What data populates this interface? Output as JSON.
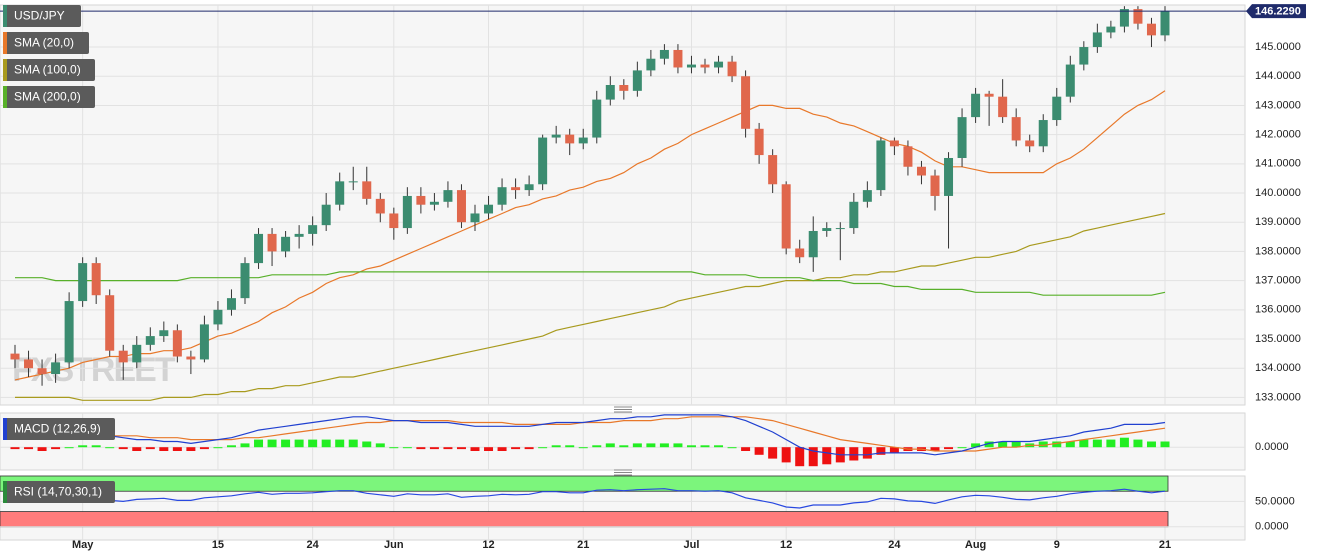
{
  "chart_data": [
    {
      "type": "candlestick",
      "title": "USD/JPY",
      "watermark": "FXSTREET",
      "last_price_label": "146.2290",
      "categories": [
        null,
        null,
        null,
        null,
        null,
        "May",
        null,
        null,
        null,
        null,
        null,
        null,
        null,
        null,
        null,
        "15",
        null,
        null,
        null,
        null,
        null,
        null,
        "24",
        null,
        null,
        null,
        null,
        null,
        "Jun",
        null,
        null,
        null,
        null,
        null,
        null,
        "12",
        null,
        null,
        null,
        null,
        null,
        null,
        "21",
        null,
        null,
        null,
        null,
        null,
        null,
        null,
        "Jul",
        null,
        null,
        null,
        null,
        null,
        null,
        "12",
        null,
        null,
        null,
        null,
        null,
        null,
        null,
        "24",
        null,
        null,
        null,
        null,
        null,
        "Aug",
        null,
        null,
        null,
        null,
        null,
        "9",
        null,
        null,
        null,
        null,
        null,
        null,
        null,
        "21"
      ],
      "open": [
        134.5,
        134.3,
        134.0,
        133.8,
        134.2,
        136.3,
        137.6,
        136.5,
        134.6,
        134.2,
        134.8,
        135.1,
        135.3,
        134.4,
        134.3,
        135.5,
        136.0,
        136.4,
        137.6,
        138.6,
        138.0,
        138.5,
        138.6,
        138.9,
        139.6,
        140.4,
        140.4,
        139.8,
        139.3,
        138.8,
        139.9,
        139.6,
        139.7,
        140.1,
        139.0,
        139.3,
        139.6,
        140.2,
        140.1,
        140.3,
        141.9,
        142.0,
        141.7,
        141.9,
        143.2,
        143.7,
        143.5,
        144.2,
        144.6,
        144.9,
        144.3,
        144.4,
        144.3,
        144.5,
        144.0,
        142.2,
        141.3,
        140.3,
        138.1,
        137.8,
        138.7,
        138.8,
        138.8,
        139.7,
        140.1,
        141.8,
        141.6,
        140.9,
        140.6,
        139.9,
        141.2,
        142.6,
        143.4,
        143.3,
        142.6,
        141.8,
        141.6,
        142.5,
        143.3,
        144.4,
        145.0,
        145.5,
        145.7,
        146.3,
        145.8,
        145.4
      ],
      "high": [
        134.8,
        134.6,
        134.3,
        134.5,
        136.6,
        137.8,
        137.8,
        136.7,
        134.8,
        135.1,
        135.4,
        135.6,
        135.5,
        134.6,
        135.8,
        136.3,
        136.7,
        137.8,
        138.8,
        138.8,
        138.7,
        138.9,
        139.2,
        140.0,
        140.7,
        140.9,
        140.9,
        140.0,
        139.5,
        140.2,
        140.2,
        140.0,
        140.4,
        140.3,
        139.6,
        139.9,
        140.5,
        140.5,
        140.6,
        142.0,
        142.3,
        142.2,
        142.2,
        143.5,
        144.0,
        143.9,
        144.5,
        144.9,
        145.1,
        145.1,
        144.7,
        144.6,
        144.7,
        144.7,
        144.2,
        142.4,
        141.5,
        140.4,
        138.4,
        139.2,
        139.0,
        139.0,
        140.0,
        140.4,
        141.9,
        141.9,
        141.8,
        141.1,
        140.8,
        141.4,
        142.9,
        143.6,
        143.5,
        143.9,
        142.9,
        142.0,
        142.7,
        143.6,
        144.7,
        145.2,
        145.8,
        145.9,
        146.4,
        146.4,
        146.0,
        146.4
      ],
      "low": [
        134.0,
        133.7,
        133.4,
        133.5,
        134.0,
        136.1,
        136.2,
        134.4,
        133.6,
        134.0,
        134.6,
        134.9,
        134.2,
        133.8,
        134.2,
        135.3,
        135.8,
        136.2,
        137.4,
        137.5,
        137.8,
        138.1,
        138.2,
        138.7,
        139.4,
        140.1,
        139.6,
        139.0,
        138.4,
        138.6,
        139.3,
        139.4,
        139.5,
        138.8,
        138.7,
        139.1,
        139.4,
        139.8,
        139.9,
        140.1,
        141.7,
        141.3,
        141.5,
        141.7,
        143.0,
        143.2,
        143.3,
        144.0,
        144.4,
        144.1,
        144.1,
        144.1,
        144.1,
        143.8,
        141.9,
        141.0,
        140.0,
        137.9,
        137.6,
        137.3,
        138.5,
        137.7,
        138.6,
        139.5,
        139.9,
        141.3,
        140.6,
        140.3,
        139.4,
        138.1,
        140.9,
        142.4,
        142.3,
        142.4,
        141.6,
        141.4,
        141.4,
        142.3,
        143.1,
        144.2,
        144.8,
        145.3,
        145.5,
        145.6,
        145.0,
        145.2
      ],
      "close": [
        134.3,
        134.0,
        133.8,
        134.2,
        136.3,
        137.6,
        136.5,
        134.6,
        134.2,
        134.8,
        135.1,
        135.3,
        134.4,
        134.3,
        135.5,
        136.0,
        136.4,
        137.6,
        138.6,
        138.0,
        138.5,
        138.6,
        138.9,
        139.6,
        140.4,
        140.4,
        139.8,
        139.3,
        138.8,
        139.9,
        139.6,
        139.7,
        140.1,
        139.0,
        139.3,
        139.6,
        140.2,
        140.1,
        140.3,
        141.9,
        142.0,
        141.7,
        141.9,
        143.2,
        143.7,
        143.5,
        144.2,
        144.6,
        144.9,
        144.3,
        144.4,
        144.3,
        144.5,
        144.0,
        142.2,
        141.3,
        140.3,
        138.1,
        137.8,
        138.7,
        138.8,
        138.8,
        139.7,
        140.1,
        141.8,
        141.6,
        140.9,
        140.6,
        139.9,
        141.2,
        142.6,
        143.4,
        143.3,
        142.6,
        141.8,
        141.6,
        142.5,
        143.3,
        144.4,
        145.0,
        145.5,
        145.7,
        146.3,
        145.8,
        145.4,
        146.229
      ],
      "up_color": "#3b8c70",
      "down_color": "#e0674c",
      "title_color": "#3b8c70",
      "last_color": "#1f2b6b",
      "series": [
        {
          "name": "SMA (20,0)",
          "color": "#e8782a",
          "values": [
            133.6,
            133.7,
            133.8,
            133.9,
            134.0,
            134.2,
            134.3,
            134.4,
            134.4,
            134.5,
            134.5,
            134.6,
            134.6,
            134.7,
            134.9,
            135.1,
            135.2,
            135.4,
            135.6,
            135.9,
            136.1,
            136.4,
            136.6,
            136.9,
            137.1,
            137.2,
            137.4,
            137.5,
            137.7,
            137.9,
            138.1,
            138.3,
            138.5,
            138.7,
            138.9,
            139.1,
            139.3,
            139.5,
            139.6,
            139.8,
            139.9,
            140.1,
            140.2,
            140.4,
            140.5,
            140.7,
            141.0,
            141.2,
            141.5,
            141.7,
            142.0,
            142.2,
            142.4,
            142.6,
            142.8,
            143.0,
            143.0,
            142.9,
            142.9,
            142.7,
            142.6,
            142.4,
            142.3,
            142.1,
            141.9,
            141.7,
            141.6,
            141.4,
            141.1,
            140.9,
            140.9,
            140.8,
            140.7,
            140.7,
            140.7,
            140.7,
            140.7,
            141.0,
            141.2,
            141.5,
            141.9,
            142.3,
            142.7,
            143.0,
            143.2,
            143.5
          ]
        },
        {
          "name": "SMA (100,0)",
          "color": "#a89a1e",
          "values": [
            133.0,
            133.0,
            133.0,
            133.0,
            133.0,
            132.9,
            132.9,
            132.9,
            132.9,
            132.9,
            132.9,
            133.0,
            133.0,
            133.0,
            133.1,
            133.1,
            133.2,
            133.2,
            133.3,
            133.3,
            133.4,
            133.4,
            133.5,
            133.6,
            133.7,
            133.7,
            133.8,
            133.9,
            134.0,
            134.1,
            134.2,
            134.3,
            134.4,
            134.5,
            134.6,
            134.7,
            134.8,
            134.9,
            135.0,
            135.1,
            135.3,
            135.4,
            135.5,
            135.6,
            135.7,
            135.8,
            135.9,
            136.0,
            136.1,
            136.3,
            136.4,
            136.5,
            136.6,
            136.7,
            136.8,
            136.8,
            136.9,
            137.0,
            137.0,
            137.0,
            137.1,
            137.1,
            137.2,
            137.2,
            137.3,
            137.3,
            137.4,
            137.5,
            137.5,
            137.6,
            137.7,
            137.8,
            137.8,
            137.9,
            138.0,
            138.2,
            138.3,
            138.4,
            138.5,
            138.7,
            138.8,
            138.9,
            139.0,
            139.1,
            139.2,
            139.3
          ]
        },
        {
          "name": "SMA (200,0)",
          "color": "#58b02a",
          "values": [
            137.1,
            137.1,
            137.1,
            137.0,
            137.0,
            137.0,
            137.0,
            137.0,
            137.0,
            137.0,
            137.0,
            137.0,
            137.0,
            137.1,
            137.1,
            137.1,
            137.1,
            137.1,
            137.1,
            137.2,
            137.2,
            137.2,
            137.2,
            137.2,
            137.3,
            137.3,
            137.3,
            137.3,
            137.3,
            137.3,
            137.3,
            137.3,
            137.3,
            137.3,
            137.3,
            137.3,
            137.3,
            137.3,
            137.3,
            137.3,
            137.3,
            137.3,
            137.3,
            137.3,
            137.3,
            137.3,
            137.3,
            137.3,
            137.3,
            137.3,
            137.3,
            137.2,
            137.2,
            137.2,
            137.2,
            137.1,
            137.1,
            137.1,
            137.1,
            137.0,
            137.0,
            137.0,
            136.9,
            136.9,
            136.9,
            136.8,
            136.8,
            136.7,
            136.7,
            136.7,
            136.7,
            136.6,
            136.6,
            136.6,
            136.6,
            136.6,
            136.5,
            136.5,
            136.5,
            136.5,
            136.5,
            136.5,
            136.5,
            136.5,
            136.5,
            136.6
          ]
        }
      ],
      "ylim": [
        132.74,
        146.44
      ],
      "yticks": [
        {
          "value": 133,
          "label": "133.0000"
        },
        {
          "value": 134,
          "label": "134.0000"
        },
        {
          "value": 135,
          "label": "135.0000"
        },
        {
          "value": 136,
          "label": "136.0000"
        },
        {
          "value": 137,
          "label": "137.0000"
        },
        {
          "value": 138,
          "label": "138.0000"
        },
        {
          "value": 139,
          "label": "139.0000"
        },
        {
          "value": 140,
          "label": "140.0000"
        },
        {
          "value": 141,
          "label": "141.0000"
        },
        {
          "value": 142,
          "label": "142.0000"
        },
        {
          "value": 143,
          "label": "143.0000"
        },
        {
          "value": 144,
          "label": "144.0000"
        },
        {
          "value": 145,
          "label": "145.0000"
        }
      ],
      "grid": true
    },
    {
      "type": "macd",
      "title": "MACD (12,26,9)",
      "title_color": "#2040d0",
      "macd": {
        "color": "#2040d0",
        "values": [
          0.6,
          0.6,
          0.5,
          0.5,
          0.6,
          0.7,
          0.7,
          0.6,
          0.5,
          0.4,
          0.4,
          0.3,
          0.3,
          0.2,
          0.3,
          0.4,
          0.5,
          0.7,
          0.9,
          1.0,
          1.1,
          1.2,
          1.3,
          1.4,
          1.5,
          1.6,
          1.6,
          1.5,
          1.4,
          1.4,
          1.3,
          1.3,
          1.3,
          1.2,
          1.1,
          1.1,
          1.1,
          1.1,
          1.1,
          1.2,
          1.3,
          1.3,
          1.3,
          1.4,
          1.5,
          1.5,
          1.6,
          1.6,
          1.7,
          1.7,
          1.7,
          1.7,
          1.7,
          1.6,
          1.4,
          1.1,
          0.8,
          0.4,
          0.0,
          -0.2,
          -0.3,
          -0.4,
          -0.4,
          -0.4,
          -0.3,
          -0.3,
          -0.3,
          -0.3,
          -0.4,
          -0.3,
          -0.2,
          0.0,
          0.2,
          0.3,
          0.3,
          0.3,
          0.4,
          0.5,
          0.6,
          0.8,
          0.9,
          1.0,
          1.2,
          1.2,
          1.2,
          1.3
        ]
      },
      "signal": {
        "color": "#e8782a",
        "values": [
          0.7,
          0.7,
          0.7,
          0.6,
          0.6,
          0.6,
          0.6,
          0.6,
          0.6,
          0.6,
          0.5,
          0.5,
          0.5,
          0.4,
          0.4,
          0.4,
          0.4,
          0.5,
          0.5,
          0.6,
          0.7,
          0.8,
          0.9,
          1.0,
          1.1,
          1.2,
          1.3,
          1.3,
          1.4,
          1.4,
          1.4,
          1.4,
          1.4,
          1.3,
          1.3,
          1.3,
          1.3,
          1.2,
          1.2,
          1.2,
          1.2,
          1.2,
          1.3,
          1.3,
          1.3,
          1.4,
          1.4,
          1.4,
          1.5,
          1.5,
          1.6,
          1.6,
          1.6,
          1.6,
          1.6,
          1.5,
          1.4,
          1.2,
          1.0,
          0.8,
          0.6,
          0.4,
          0.3,
          0.2,
          0.1,
          0.0,
          -0.1,
          -0.1,
          -0.2,
          -0.2,
          -0.2,
          -0.2,
          -0.1,
          0.0,
          0.0,
          0.1,
          0.1,
          0.2,
          0.3,
          0.4,
          0.5,
          0.6,
          0.7,
          0.8,
          0.9,
          1.0
        ]
      },
      "histogram": {
        "up_color": "#22ee22",
        "down_color": "#ee1111",
        "values": [
          -0.1,
          -0.1,
          -0.2,
          -0.1,
          0.0,
          0.1,
          0.1,
          0.0,
          -0.1,
          -0.2,
          -0.1,
          -0.2,
          -0.2,
          -0.2,
          -0.1,
          0.0,
          0.1,
          0.2,
          0.4,
          0.4,
          0.4,
          0.4,
          0.4,
          0.4,
          0.4,
          0.4,
          0.3,
          0.2,
          0.0,
          0.0,
          -0.1,
          -0.1,
          -0.1,
          -0.1,
          -0.2,
          -0.2,
          -0.2,
          -0.1,
          -0.1,
          0.0,
          0.1,
          0.1,
          0.0,
          0.1,
          0.2,
          0.1,
          0.2,
          0.2,
          0.2,
          0.2,
          0.1,
          0.1,
          0.1,
          0.0,
          -0.2,
          -0.4,
          -0.6,
          -0.8,
          -1.0,
          -1.0,
          -0.9,
          -0.8,
          -0.7,
          -0.6,
          -0.4,
          -0.3,
          -0.2,
          -0.2,
          -0.2,
          -0.1,
          0.0,
          0.2,
          0.3,
          0.3,
          0.3,
          0.2,
          0.3,
          0.3,
          0.3,
          0.4,
          0.4,
          0.4,
          0.5,
          0.4,
          0.3,
          0.3
        ]
      },
      "ylim": [
        -1.2,
        1.8
      ],
      "yticks": [
        {
          "value": 0,
          "label": "0.0000"
        }
      ]
    },
    {
      "type": "rsi",
      "title": "RSI (14,70,30,1)",
      "title_color": "#2a8a3a",
      "color": "#2848e0",
      "values": [
        58,
        55,
        53,
        55,
        62,
        66,
        60,
        52,
        50,
        54,
        55,
        56,
        52,
        52,
        57,
        59,
        61,
        65,
        68,
        64,
        66,
        66,
        67,
        69,
        71,
        71,
        66,
        63,
        60,
        65,
        63,
        63,
        65,
        58,
        60,
        61,
        64,
        63,
        64,
        69,
        69,
        67,
        67,
        72,
        73,
        71,
        73,
        74,
        75,
        71,
        71,
        70,
        71,
        67,
        57,
        52,
        47,
        39,
        37,
        43,
        43,
        43,
        47,
        49,
        56,
        55,
        51,
        50,
        46,
        53,
        59,
        62,
        61,
        58,
        54,
        53,
        57,
        60,
        65,
        68,
        70,
        71,
        74,
        70,
        67,
        70
      ],
      "bands": [
        {
          "from": 70,
          "to": 100,
          "color": "#7cf57c"
        },
        {
          "from": 0,
          "to": 30,
          "color": "#ff7c7c"
        }
      ],
      "ylim": [
        -26,
        100
      ],
      "yticks": [
        {
          "value": 0,
          "label": "0.0000"
        },
        {
          "value": 50,
          "label": "50.0000"
        }
      ]
    }
  ]
}
